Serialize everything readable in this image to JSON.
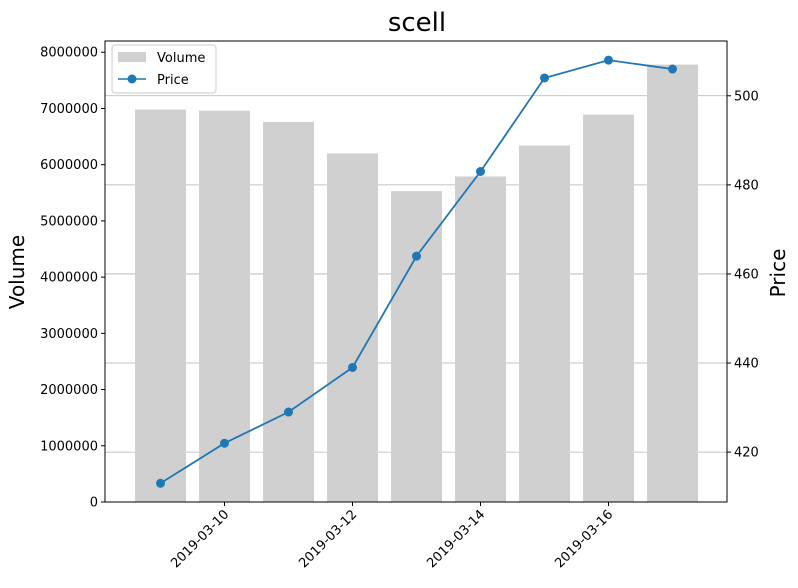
{
  "chart_data": {
    "type": "bar+line",
    "title": "scell",
    "left_ylabel": "Volume",
    "right_ylabel": "Price",
    "x": [
      "2019-03-09",
      "2019-03-10",
      "2019-03-11",
      "2019-03-12",
      "2019-03-13",
      "2019-03-14",
      "2019-03-15",
      "2019-03-16",
      "2019-03-17"
    ],
    "x_tick_labels": [
      "2019-03-10",
      "2019-03-12",
      "2019-03-14",
      "2019-03-16"
    ],
    "series": [
      {
        "name": "Volume",
        "type": "bar",
        "axis": "left",
        "color": "#d0d0d0",
        "values": [
          6980000,
          6960000,
          6760000,
          6200000,
          5530000,
          5790000,
          6340000,
          6890000,
          7780000
        ]
      },
      {
        "name": "Price",
        "type": "line",
        "axis": "right",
        "color": "#1f77b4",
        "values": [
          413,
          422,
          429,
          439,
          464,
          483,
          504,
          508,
          506
        ]
      }
    ],
    "left_ylim": [
      0,
      8200000
    ],
    "left_yticks": [
      0,
      1000000,
      2000000,
      3000000,
      4000000,
      5000000,
      6000000,
      7000000,
      8000000
    ],
    "right_ylim": [
      408.8,
      512.3
    ],
    "right_yticks": [
      420,
      440,
      460,
      480,
      500
    ],
    "grid": "horizontal on right axis",
    "legend_position": "upper-left"
  }
}
